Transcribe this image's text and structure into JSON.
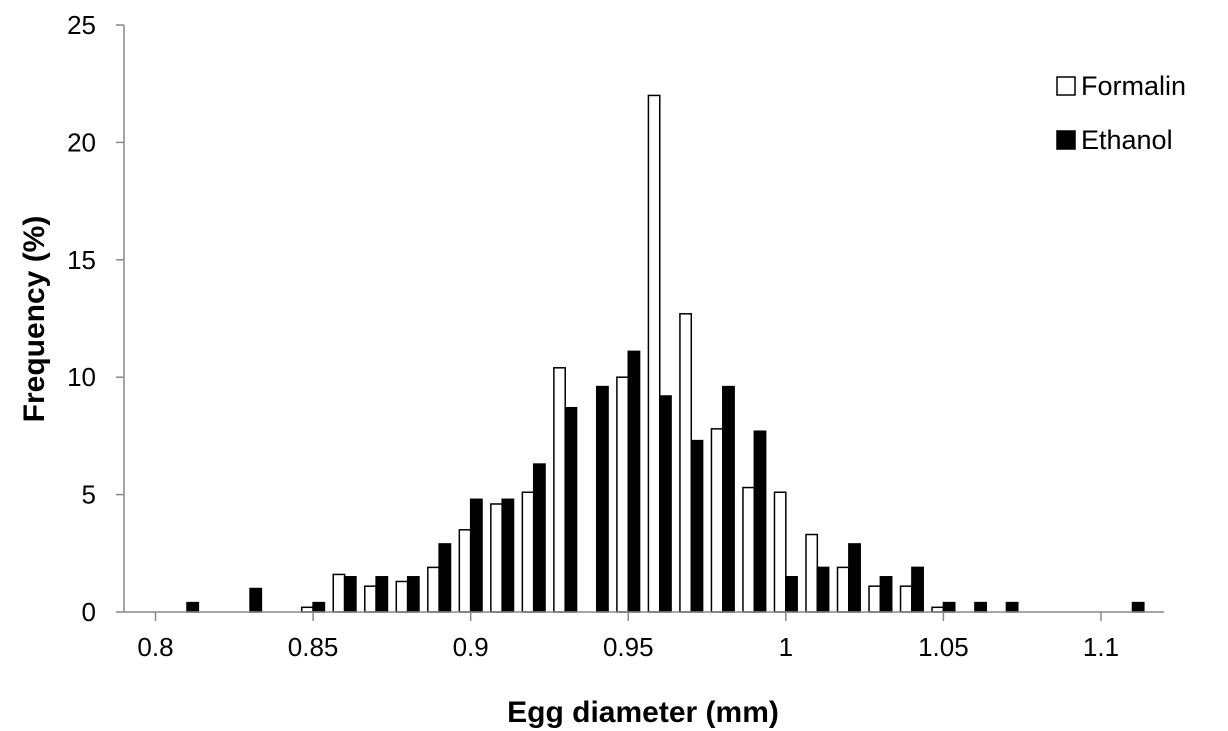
{
  "chart_data": {
    "type": "bar",
    "xlabel": "Egg diameter (mm)",
    "ylabel": "Frequency (%)",
    "xlim": [
      0.79,
      1.12
    ],
    "ylim": [
      0,
      25
    ],
    "x_ticks": [
      0.8,
      0.85,
      0.9,
      0.95,
      1,
      1.05,
      1.1
    ],
    "x_tick_labels": [
      "0.8",
      "0.85",
      "0.9",
      "0.95",
      "1",
      "1.05",
      "1.1"
    ],
    "y_ticks": [
      0,
      5,
      10,
      15,
      20,
      25
    ],
    "y_tick_labels": [
      "0",
      "5",
      "10",
      "15",
      "20",
      "25"
    ],
    "grid": false,
    "legend_position": "top-right",
    "bin_width": 0.01,
    "categories": [
      0.81,
      0.82,
      0.83,
      0.84,
      0.85,
      0.86,
      0.87,
      0.88,
      0.89,
      0.9,
      0.91,
      0.92,
      0.93,
      0.94,
      0.95,
      0.96,
      0.97,
      0.98,
      0.99,
      1.0,
      1.01,
      1.02,
      1.03,
      1.04,
      1.05,
      1.06,
      1.07,
      1.08,
      1.09,
      1.1,
      1.11
    ],
    "series": [
      {
        "name": "Formalin",
        "color": "#ffffff",
        "values": [
          0,
          0,
          0,
          0,
          0.2,
          1.6,
          1.1,
          1.3,
          1.9,
          3.5,
          4.6,
          5.1,
          10.4,
          0,
          10.0,
          22.0,
          12.7,
          7.8,
          5.3,
          5.1,
          3.3,
          1.9,
          1.1,
          1.1,
          0.2,
          0,
          0,
          0,
          0,
          0,
          0
        ]
      },
      {
        "name": "Ethanol",
        "color": "#000000",
        "values": [
          0.4,
          0,
          1.0,
          0,
          0.4,
          1.5,
          1.5,
          1.5,
          2.9,
          4.8,
          4.8,
          6.3,
          8.7,
          9.6,
          11.1,
          9.2,
          7.3,
          9.6,
          7.7,
          1.5,
          1.9,
          2.9,
          1.5,
          1.9,
          0.4,
          0.4,
          0.4,
          0,
          0,
          0,
          0.4
        ]
      }
    ]
  }
}
